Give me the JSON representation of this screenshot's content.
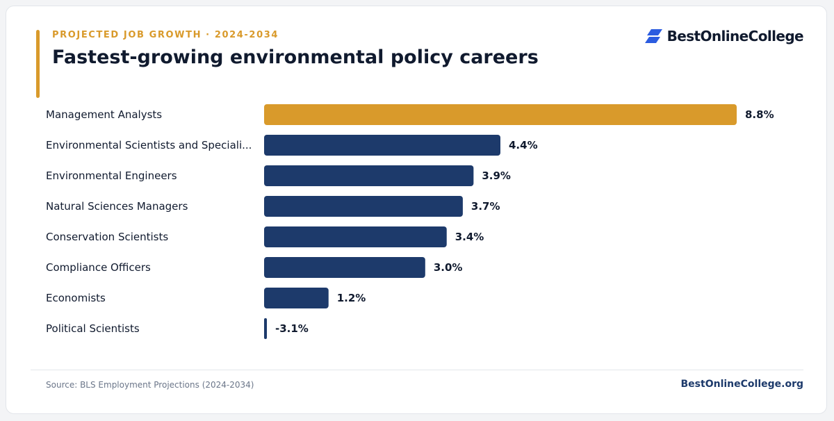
{
  "header": {
    "kicker": "PROJECTED JOB GROWTH · 2024-2034",
    "title": "Fastest-growing environmental policy careers"
  },
  "brand": {
    "logo_text": "BestOnlineCollege",
    "logo_icon": "stacked-parallelogram-logo-icon",
    "logo_color": "#2b5ce0"
  },
  "footer": {
    "source": "Source: BLS Employment Projections (2024-2034)",
    "site": "BestOnlineCollege.org"
  },
  "colors": {
    "highlight": "#d99a2b",
    "bar": "#1d3a6b",
    "text": "#101a2e"
  },
  "chart_data": {
    "type": "bar",
    "orientation": "horizontal",
    "categories": [
      "Management Analysts",
      "Environmental Scientists and Speciali...",
      "Environmental Engineers",
      "Natural Sciences Managers",
      "Conservation Scientists",
      "Compliance Officers",
      "Economists",
      "Political Scientists"
    ],
    "values": [
      8.8,
      4.4,
      3.9,
      3.7,
      3.4,
      3.0,
      1.2,
      -3.1
    ],
    "value_labels": [
      "8.8%",
      "4.4%",
      "3.9%",
      "3.7%",
      "3.4%",
      "3.0%",
      "1.2%",
      "-3.1%"
    ],
    "highlight_index": 0,
    "grid": false,
    "legend": "none"
  }
}
